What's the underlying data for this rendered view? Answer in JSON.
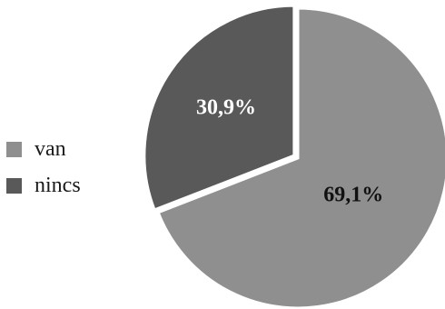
{
  "chart_data": {
    "type": "pie",
    "title": "",
    "legend_position": "left",
    "slices": [
      {
        "label": "van",
        "value": 69.1,
        "display": "69,1%",
        "color": "#8f8f8f",
        "label_color": "#111111"
      },
      {
        "label": "nincs",
        "value": 30.9,
        "display": "30,9%",
        "color": "#595959",
        "label_color": "#ffffff"
      }
    ]
  }
}
